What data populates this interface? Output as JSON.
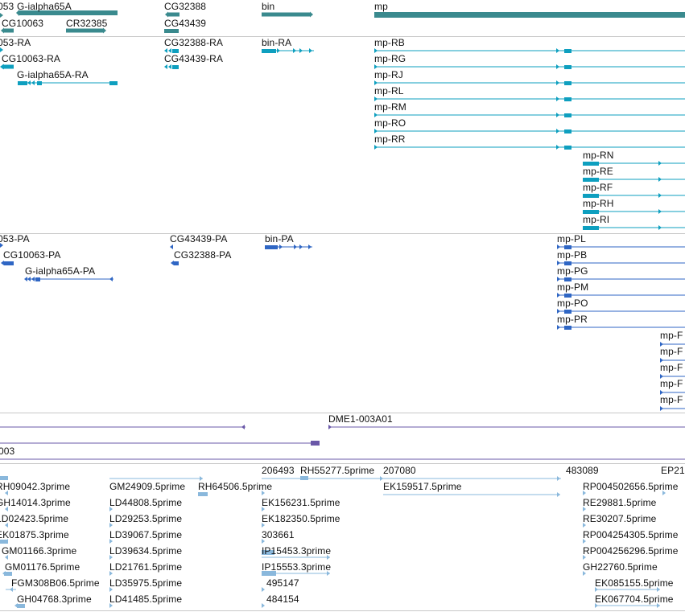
{
  "colors": {
    "gene": "#3a8a8e",
    "transcript": "#0e9fbf",
    "protein": "#2f66c4",
    "clone": "#6a58a8",
    "est": "#8ab8dc",
    "separator": "#c8c8c8",
    "label": "#111111"
  },
  "tracks": {
    "genes": {
      "labels": [
        {
          "id": "g1",
          "text": "053"
        },
        {
          "id": "g2",
          "text": "G-ialpha65A"
        },
        {
          "id": "g3",
          "text": "CG10063"
        },
        {
          "id": "g4",
          "text": "CR32385"
        },
        {
          "id": "g5",
          "text": "CG32388"
        },
        {
          "id": "g6",
          "text": "CG43439"
        },
        {
          "id": "g7",
          "text": "bin"
        },
        {
          "id": "g8",
          "text": "mp"
        }
      ]
    },
    "transcripts": {
      "labels": [
        {
          "id": "t1",
          "text": "053-RA"
        },
        {
          "id": "t2",
          "text": "CG10063-RA"
        },
        {
          "id": "t3",
          "text": "G-ialpha65A-RA"
        },
        {
          "id": "t4",
          "text": "CG32388-RA"
        },
        {
          "id": "t5",
          "text": "CG43439-RA"
        },
        {
          "id": "t6",
          "text": "bin-RA"
        },
        {
          "id": "t7",
          "text": "mp-RB"
        },
        {
          "id": "t8",
          "text": "mp-RG"
        },
        {
          "id": "t9",
          "text": "mp-RJ"
        },
        {
          "id": "t10",
          "text": "mp-RL"
        },
        {
          "id": "t11",
          "text": "mp-RM"
        },
        {
          "id": "t12",
          "text": "mp-RO"
        },
        {
          "id": "t13",
          "text": "mp-RR"
        },
        {
          "id": "t14",
          "text": "mp-RN"
        },
        {
          "id": "t15",
          "text": "mp-RE"
        },
        {
          "id": "t16",
          "text": "mp-RF"
        },
        {
          "id": "t17",
          "text": "mp-RH"
        },
        {
          "id": "t18",
          "text": "mp-RI"
        }
      ]
    },
    "proteins": {
      "labels": [
        {
          "id": "p1",
          "text": "053-PA"
        },
        {
          "id": "p2",
          "text": "CG10063-PA"
        },
        {
          "id": "p3",
          "text": "G-ialpha65A-PA"
        },
        {
          "id": "p4",
          "text": "CG43439-PA"
        },
        {
          "id": "p5",
          "text": "CG32388-PA"
        },
        {
          "id": "p6",
          "text": "bin-PA"
        },
        {
          "id": "p7",
          "text": "mp-PL"
        },
        {
          "id": "p8",
          "text": "mp-PB"
        },
        {
          "id": "p9",
          "text": "mp-PG"
        },
        {
          "id": "p10",
          "text": "mp-PM"
        },
        {
          "id": "p11",
          "text": "mp-PO"
        },
        {
          "id": "p12",
          "text": "mp-PR"
        },
        {
          "id": "p13",
          "text": "mp-F"
        },
        {
          "id": "p14",
          "text": "mp-F"
        },
        {
          "id": "p15",
          "text": "mp-F"
        },
        {
          "id": "p16",
          "text": "mp-F"
        },
        {
          "id": "p17",
          "text": "mp-F"
        }
      ]
    },
    "clones": {
      "labels": [
        {
          "id": "c1",
          "text": "DME1-003A01"
        },
        {
          "id": "c2",
          "text": "003"
        }
      ]
    },
    "ests": {
      "labels": [
        {
          "id": "e1",
          "text": "206493"
        },
        {
          "id": "e2",
          "text": "RH55277.5prime"
        },
        {
          "id": "e3",
          "text": "207080"
        },
        {
          "id": "e4",
          "text": "483089"
        },
        {
          "id": "e5",
          "text": "EP21"
        },
        {
          "id": "e6",
          "text": "RH09042.3prime"
        },
        {
          "id": "e7",
          "text": "GM24909.5prime"
        },
        {
          "id": "e8",
          "text": "RH64506.5prime"
        },
        {
          "id": "e9",
          "text": "EK159517.5prime"
        },
        {
          "id": "e10",
          "text": "RP004502656.5prime"
        },
        {
          "id": "e11",
          "text": "GH14014.3prime"
        },
        {
          "id": "e12",
          "text": "LD44808.5prime"
        },
        {
          "id": "e13",
          "text": "EK156231.5prime"
        },
        {
          "id": "e14",
          "text": "RE29881.5prime"
        },
        {
          "id": "e15",
          "text": "LD02423.5prime"
        },
        {
          "id": "e16",
          "text": "LD29253.5prime"
        },
        {
          "id": "e17",
          "text": "EK182350.5prime"
        },
        {
          "id": "e18",
          "text": "RE30207.5prime"
        },
        {
          "id": "e19",
          "text": "EK01875.3prime"
        },
        {
          "id": "e20",
          "text": "LD39067.5prime"
        },
        {
          "id": "e21",
          "text": "303661"
        },
        {
          "id": "e22",
          "text": "RP004254305.5prime"
        },
        {
          "id": "e23",
          "text": "GM01166.3prime"
        },
        {
          "id": "e24",
          "text": "LD39634.5prime"
        },
        {
          "id": "e25",
          "text": "IP15453.3prime"
        },
        {
          "id": "e26",
          "text": "RP004256296.5prime"
        },
        {
          "id": "e27",
          "text": "GM01176.5prime"
        },
        {
          "id": "e28",
          "text": "LD21761.5prime"
        },
        {
          "id": "e29",
          "text": "IP15553.3prime"
        },
        {
          "id": "e30",
          "text": "GH22760.5prime"
        },
        {
          "id": "e31",
          "text": "FGM308B06.5prime"
        },
        {
          "id": "e32",
          "text": "LD35975.5prime"
        },
        {
          "id": "e33",
          "text": "495147"
        },
        {
          "id": "e34",
          "text": "EK085155.5prime"
        },
        {
          "id": "e35",
          "text": "GH04768.3prime"
        },
        {
          "id": "e36",
          "text": "LD41485.5prime"
        },
        {
          "id": "e37",
          "text": "484154"
        },
        {
          "id": "e38",
          "text": "EK067704.5prime"
        }
      ]
    }
  }
}
